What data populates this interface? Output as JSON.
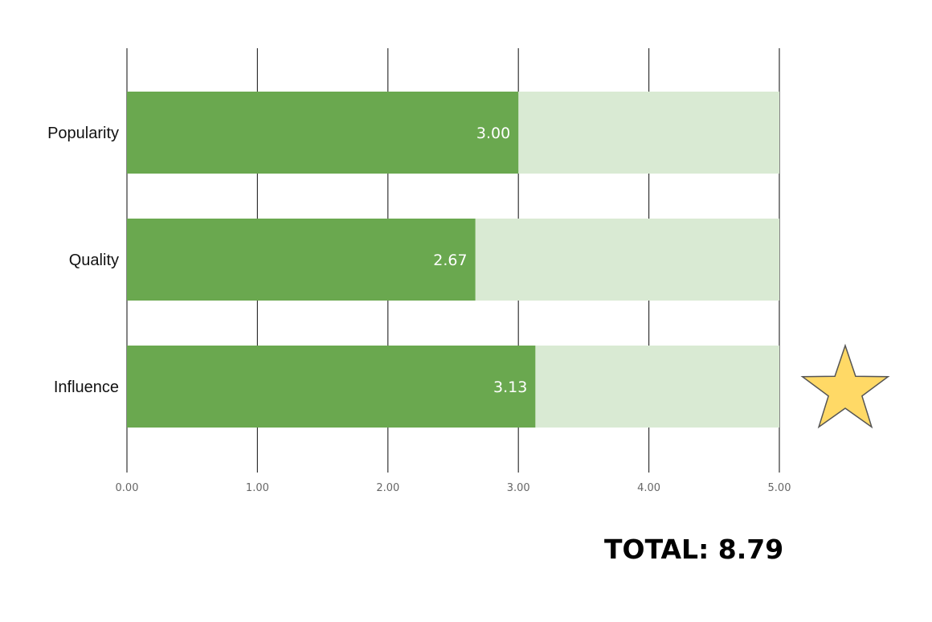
{
  "chart_data": {
    "type": "bar",
    "orientation": "horizontal",
    "stacked_background": true,
    "categories": [
      "Popularity",
      "Quality",
      "Influence"
    ],
    "values": [
      3.0,
      2.67,
      3.13
    ],
    "value_labels": [
      "3.00",
      "2.67",
      "3.13"
    ],
    "max_value": 5.0,
    "xlim": [
      0,
      5
    ],
    "xticks": [
      0,
      1,
      2,
      3,
      4,
      5
    ],
    "xtick_labels": [
      "0.00",
      "1.00",
      "2.00",
      "3.00",
      "4.00",
      "5.00"
    ],
    "grid": true,
    "legend": "none",
    "highlighted_category": "Influence",
    "highlight_icon": "star-icon"
  },
  "colors": {
    "bar_fill": "#6aa84f",
    "bar_remainder": "#d9ead3",
    "gridline": "#333333",
    "star_fill": "#ffd966",
    "star_stroke": "#555555"
  },
  "total_label": "TOTAL: 8.79"
}
